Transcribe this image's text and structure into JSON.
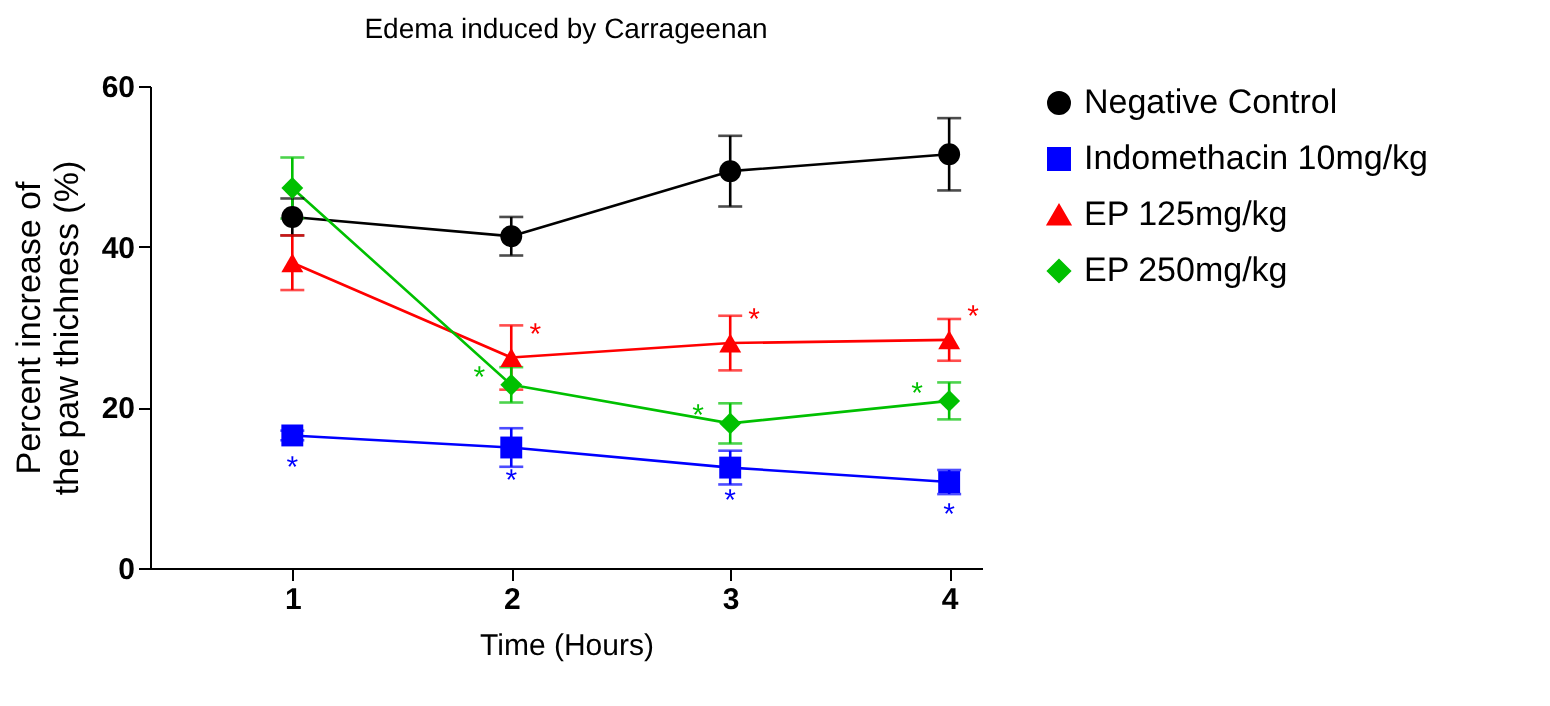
{
  "chart_data": {
    "type": "line",
    "title": "Edema induced by Carrageenan",
    "xlabel": "Time (Hours)",
    "ylabel": "Percent increase of\nthe paw thichness (%)",
    "x": [
      1,
      2,
      3,
      4
    ],
    "xlim": [
      0.35,
      4.15
    ],
    "xticks": [
      1,
      2,
      3,
      4
    ],
    "ylim": [
      0,
      60
    ],
    "yticks": [
      0,
      20,
      40,
      60
    ],
    "grid": false,
    "legend": "right",
    "line_style": "solid",
    "series": [
      {
        "name": "Negative Control",
        "color": "#000000",
        "marker": "circle",
        "values": [
          43.7,
          41.3,
          49.4,
          51.5
        ],
        "errors": [
          2.3,
          2.4,
          4.4,
          4.5
        ]
      },
      {
        "name": "Indomethacin 10mg/kg",
        "color": "#0000ff",
        "marker": "square",
        "values": [
          16.5,
          15.0,
          12.5,
          10.7
        ],
        "errors": [
          0.6,
          2.4,
          2.1,
          1.5
        ]
      },
      {
        "name": "EP 125mg/kg",
        "color": "#ff0000",
        "marker": "triangle",
        "values": [
          38.0,
          26.2,
          28.0,
          28.4
        ],
        "errors": [
          3.4,
          4.0,
          3.4,
          2.6
        ]
      },
      {
        "name": "EP 250mg/kg",
        "color": "#00c000",
        "marker": "diamond",
        "values": [
          47.3,
          22.8,
          18.0,
          20.8
        ],
        "errors": [
          3.8,
          2.2,
          2.5,
          2.3
        ]
      }
    ],
    "annotations": [
      {
        "text": "*",
        "x": 1,
        "y": 16.5
      },
      {
        "text": "*",
        "x": 2,
        "y": 15.0
      },
      {
        "text": "*",
        "x": 3,
        "y": 12.5
      },
      {
        "text": "*",
        "x": 4,
        "y": 10.7
      },
      {
        "text": "*",
        "x": 2,
        "y": 26.2
      },
      {
        "text": "*",
        "x": 3,
        "y": 28.0
      },
      {
        "text": "*",
        "x": 4,
        "y": 28.4
      },
      {
        "text": "*",
        "x": 2,
        "y": 22.8
      },
      {
        "text": "*",
        "x": 3,
        "y": 18.0
      },
      {
        "text": "*",
        "x": 4,
        "y": 20.8
      }
    ]
  }
}
